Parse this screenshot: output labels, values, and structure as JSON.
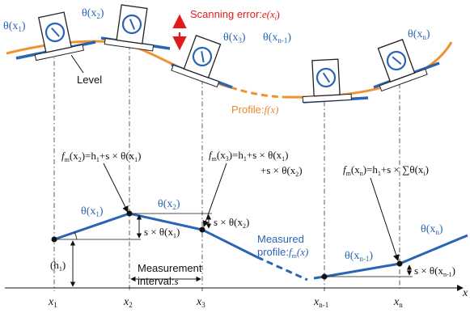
{
  "colors": {
    "blue": "#2a64b4",
    "orange": "#f0922e",
    "red": "#e01a1a",
    "black": "#111111"
  },
  "top": {
    "theta1": "θ(x",
    "theta1_sub": "1",
    "theta2": "θ(x",
    "theta2_sub": "2",
    "theta3": "θ(x",
    "theta3_sub": "3",
    "thetan1": "θ(x",
    "thetan1_sub": "n-1",
    "thetan": "θ(x",
    "thetan_sub": "n",
    "close_paren": ")",
    "scanning_error": "Scanning error:",
    "scanning_error_sym": "e(x",
    "scanning_error_sub": "i",
    "level": "Level",
    "profile": "Profile:",
    "profile_sym": "f(x)"
  },
  "formulas": {
    "f2": "f",
    "f2_m": "m",
    "f2_rest": "(x",
    "f2_sub": "2",
    "f2_eq": ")=h",
    "f2_h_sub": "1",
    "f2_tail": "+s × θ(x",
    "f2_tail_sub": "1",
    "f3": "f",
    "f3_m": "m",
    "f3_rest": "(x",
    "f3_sub": "3",
    "f3_eq": ")=h",
    "f3_h_sub": "1",
    "f3_tail": "+s × θ(x",
    "f3_tail_sub": "1",
    "f3_line2": "+s × θ(x",
    "f3_line2_sub": "2",
    "fn": "f",
    "fn_m": "m",
    "fn_rest": "(x",
    "fn_sub": "n",
    "fn_eq": ")=h",
    "fn_h_sub": "1",
    "fn_tail": "+s × ∑θ(x",
    "fn_tail_sub": "i"
  },
  "bottom": {
    "theta1": "θ(x",
    "theta1_sub": "1",
    "theta2": "θ(x",
    "theta2_sub": "2",
    "thetan1": "θ(x",
    "thetan1_sub": "n-1",
    "thetan": "θ(x",
    "thetan_sub": "n",
    "s_theta1": "s × θ(x",
    "s_theta1_sub": "1",
    "s_theta2": "s × θ(x",
    "s_theta2_sub": "2",
    "s_thetan1": "s × θ(x",
    "s_thetan1_sub": "n-1",
    "h1": "(h",
    "h1_sub": "1",
    "measured": "Measured",
    "measured_profile": "profile:",
    "measured_sym": "f",
    "measured_sym_sub": "m",
    "measured_sym_tail": "(x)",
    "measurement": "Measurement",
    "interval": "interval:",
    "interval_sym": "s"
  },
  "axis": {
    "x_label": "x",
    "ticks": [
      {
        "t": "x",
        "sub": "1"
      },
      {
        "t": "x",
        "sub": "2"
      },
      {
        "t": "x",
        "sub": "3"
      },
      {
        "t": "x",
        "sub": "n-1"
      },
      {
        "t": "x",
        "sub": "n"
      }
    ]
  }
}
